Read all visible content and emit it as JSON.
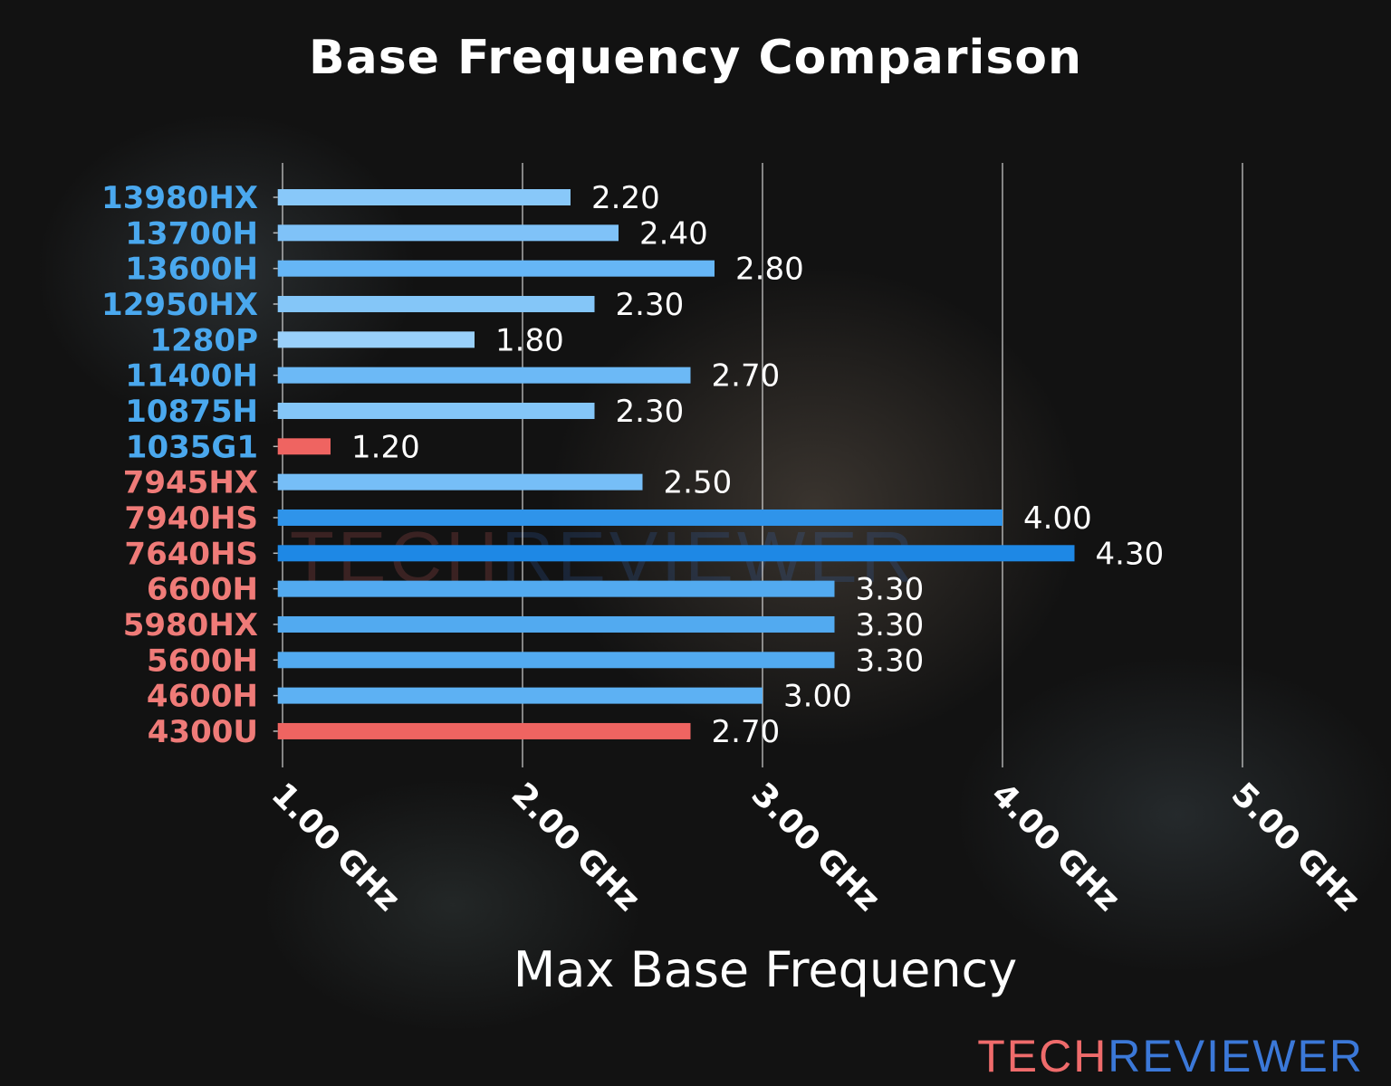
{
  "chart_data": {
    "type": "bar",
    "orientation": "horizontal",
    "title": "Base Frequency Comparison",
    "xlabel": "Max Base Frequency",
    "ylabel": "",
    "xlim": [
      0.98,
      5.1
    ],
    "grid": true,
    "categories": [
      "13980HX",
      "13700H",
      "13600H",
      "12950HX",
      "1280P",
      "11400H",
      "10875H",
      "1035G1",
      "7945HX",
      "7940HS",
      "7640HS",
      "6600H",
      "5980HX",
      "5600H",
      "4600H",
      "4300U"
    ],
    "values": [
      2.2,
      2.4,
      2.8,
      2.3,
      1.8,
      2.7,
      2.3,
      1.2,
      2.5,
      4.0,
      4.3,
      3.3,
      3.3,
      3.3,
      3.0,
      2.7
    ],
    "value_labels": [
      "2.20",
      "2.40",
      "2.80",
      "2.30",
      "1.80",
      "2.70",
      "2.30",
      "1.20",
      "2.50",
      "4.00",
      "4.30",
      "3.30",
      "3.30",
      "3.30",
      "3.00",
      "2.70"
    ],
    "bar_colors": [
      "#88c8f9",
      "#7fc2f8",
      "#66b6f6",
      "#84c6f8",
      "#99d0fa",
      "#6cb9f6",
      "#84c6f8",
      "#ef6461",
      "#76bef7",
      "#2f94ea",
      "#1e88e5",
      "#52aaf0",
      "#52aaf0",
      "#52aaf0",
      "#5db1f3",
      "#ef6461"
    ],
    "label_colors": [
      "#4aa8ee",
      "#4aa8ee",
      "#4aa8ee",
      "#4aa8ee",
      "#4aa8ee",
      "#4aa8ee",
      "#4aa8ee",
      "#4aa8ee",
      "#ef7b78",
      "#ef7b78",
      "#ef7b78",
      "#ef7b78",
      "#ef7b78",
      "#ef7b78",
      "#ef7b78",
      "#ef7b78"
    ],
    "xticks": [
      1,
      2,
      3,
      4,
      5
    ],
    "xtick_labels": [
      "1.00 GHz",
      "2.00 GHz",
      "3.00 GHz",
      "4.00 GHz",
      "5.00 GHz"
    ]
  },
  "logo": {
    "part1": "TECH",
    "part2": "REVIEWER"
  }
}
